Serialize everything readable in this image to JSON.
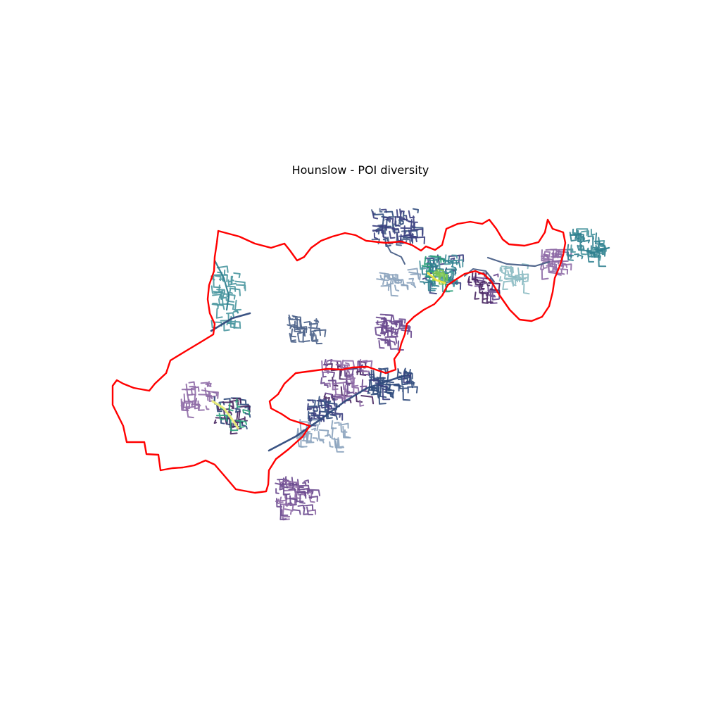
{
  "map": {
    "title": "Hounslow - POI diversity",
    "boundary_name": "Hounslow",
    "boundary_color": "#ff0000",
    "colormap": "viridis",
    "palette": {
      "dark_purple": "#46245f",
      "purple": "#6a4a8f",
      "mauve": "#8e6aa6",
      "indigo": "#3b3f80",
      "navy": "#2f4a7c",
      "slate": "#4a6088",
      "steel": "#8aa2bd",
      "teal": "#2f7f8f",
      "teal_light": "#4a97a0",
      "teal_pale": "#8abac2",
      "green": "#2aa07a",
      "lime": "#7ec850",
      "yellow": "#f0e442",
      "pale_yellow": "#eef07a"
    }
  }
}
